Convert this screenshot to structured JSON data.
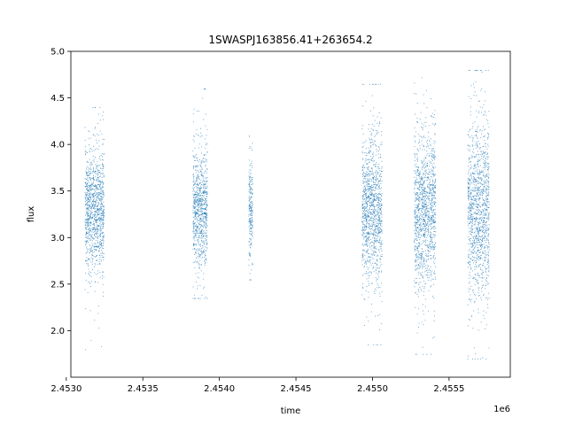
{
  "chart_data": {
    "type": "scatter",
    "title": "1SWASPJ163856.41+263654.2",
    "xlabel": "time",
    "ylabel": "flux",
    "x_offset_label": "1e6",
    "xlim": [
      2453030,
      2455900
    ],
    "ylim": [
      1.5,
      5.0
    ],
    "x_ticks": [
      2453000,
      2453500,
      2454000,
      2454500,
      2455000,
      2455500
    ],
    "x_tick_labels": [
      "2.4530",
      "2.4535",
      "2.4540",
      "2.4545",
      "2.4550",
      "2.4555"
    ],
    "y_ticks": [
      2.0,
      2.5,
      3.0,
      3.5,
      4.0,
      4.5,
      5.0
    ],
    "y_tick_labels": [
      "2.0",
      "2.5",
      "3.0",
      "3.5",
      "4.0",
      "4.5",
      "5.0"
    ],
    "grid": false,
    "point_color": "#1f77b4",
    "groups": [
      {
        "x_range": [
          2453120,
          2453245
        ],
        "median": 3.3,
        "spread_core": [
          2.95,
          3.65
        ],
        "extent": [
          1.8,
          4.4
        ]
      },
      {
        "x_range": [
          2453825,
          2453920
        ],
        "median": 3.3,
        "spread_core": [
          3.0,
          3.7
        ],
        "extent": [
          2.35,
          4.6
        ]
      },
      {
        "x_range": [
          2454190,
          2454215
        ],
        "median": 3.3,
        "spread_core": [
          3.0,
          3.6
        ],
        "extent": [
          2.55,
          4.2
        ]
      },
      {
        "x_range": [
          2454930,
          2455060
        ],
        "median": 3.3,
        "spread_core": [
          2.9,
          3.7
        ],
        "extent": [
          1.85,
          4.65
        ]
      },
      {
        "x_range": [
          2455270,
          2455410
        ],
        "median": 3.3,
        "spread_core": [
          2.85,
          3.75
        ],
        "extent": [
          1.75,
          4.85
        ]
      },
      {
        "x_range": [
          2455620,
          2455760
        ],
        "median": 3.3,
        "spread_core": [
          2.8,
          3.8
        ],
        "extent": [
          1.7,
          4.8
        ]
      }
    ]
  }
}
